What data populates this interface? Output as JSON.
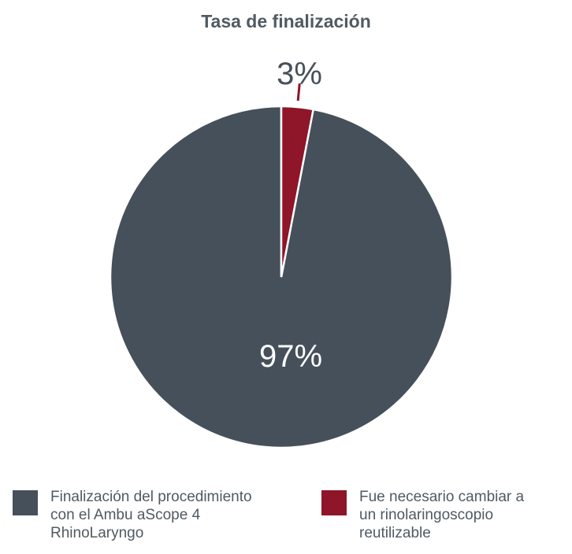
{
  "chart_data": {
    "type": "pie",
    "title": "Tasa de finalización",
    "slices": [
      {
        "label": "Finalización del procedimiento\ncon el Ambu aScope 4\nRhinoLaryngo",
        "value": 97,
        "value_label": "97%",
        "color": "#46505a"
      },
      {
        "label": "Fue necesario cambiar a\nun rinolaringoscopio\nreutilizable",
        "value": 3,
        "value_label": "3%",
        "color": "#8f1528"
      }
    ],
    "legend": "bottom"
  }
}
